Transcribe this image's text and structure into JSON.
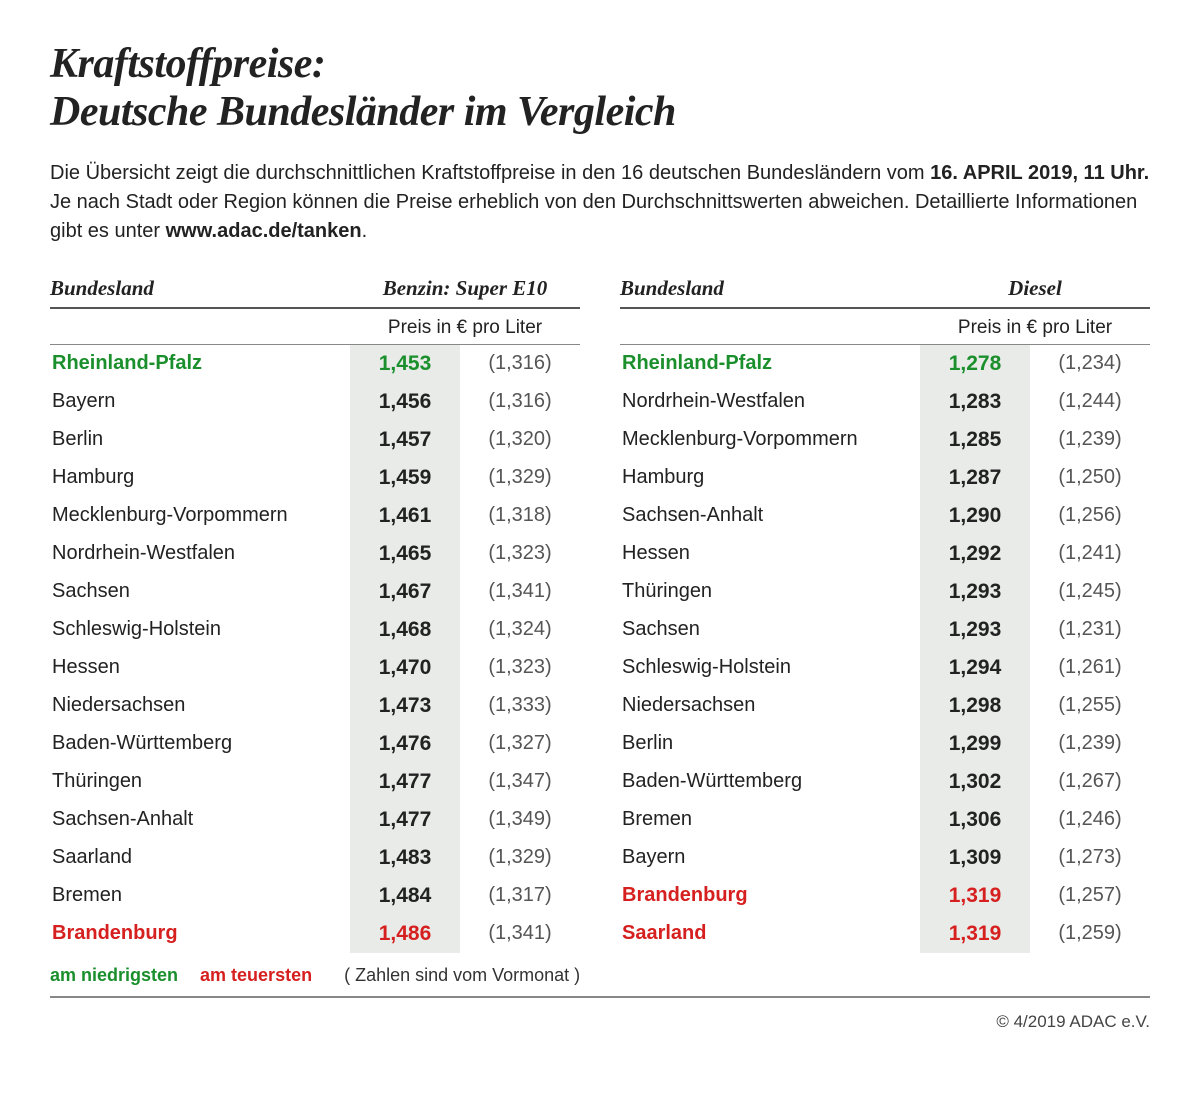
{
  "title_line1": "Kraftstoffpreise:",
  "title_line2": "Deutsche Bundesländer im Vergleich",
  "subtitle_pre": "Die Übersicht zeigt die durchschnittlichen Kraftstoffpreise in den 16 deutschen Bundesländern vom ",
  "subtitle_date": "16. APRIL 2019, 11 Uhr.",
  "subtitle_mid": " Je nach Stadt oder Region können die Preise erheblich von den Durchschnittswerten abweichen. Detaillierte Informationen gibt es unter ",
  "subtitle_link": "www.adac.de/tanken",
  "subtitle_end": ".",
  "col_region": "Bundesland",
  "unit_label": "Preis in € pro Liter",
  "tables": [
    {
      "fuel_label": "Benzin: Super E10",
      "rows": [
        {
          "name": "Rheinland-Pfalz",
          "price": "1,453",
          "prev": "(1,316)",
          "flag": "low"
        },
        {
          "name": "Bayern",
          "price": "1,456",
          "prev": "(1,316)",
          "flag": ""
        },
        {
          "name": "Berlin",
          "price": "1,457",
          "prev": "(1,320)",
          "flag": ""
        },
        {
          "name": "Hamburg",
          "price": "1,459",
          "prev": "(1,329)",
          "flag": ""
        },
        {
          "name": "Mecklenburg-Vorpommern",
          "price": "1,461",
          "prev": "(1,318)",
          "flag": ""
        },
        {
          "name": "Nordrhein-Westfalen",
          "price": "1,465",
          "prev": "(1,323)",
          "flag": ""
        },
        {
          "name": "Sachsen",
          "price": "1,467",
          "prev": "(1,341)",
          "flag": ""
        },
        {
          "name": "Schleswig-Holstein",
          "price": "1,468",
          "prev": "(1,324)",
          "flag": ""
        },
        {
          "name": "Hessen",
          "price": "1,470",
          "prev": "(1,323)",
          "flag": ""
        },
        {
          "name": "Niedersachsen",
          "price": "1,473",
          "prev": "(1,333)",
          "flag": ""
        },
        {
          "name": "Baden-Württemberg",
          "price": "1,476",
          "prev": "(1,327)",
          "flag": ""
        },
        {
          "name": "Thüringen",
          "price": "1,477",
          "prev": "(1,347)",
          "flag": ""
        },
        {
          "name": "Sachsen-Anhalt",
          "price": "1,477",
          "prev": "(1,349)",
          "flag": ""
        },
        {
          "name": "Saarland",
          "price": "1,483",
          "prev": "(1,329)",
          "flag": ""
        },
        {
          "name": "Bremen",
          "price": "1,484",
          "prev": "(1,317)",
          "flag": ""
        },
        {
          "name": "Brandenburg",
          "price": "1,486",
          "prev": "(1,341)",
          "flag": "high"
        }
      ]
    },
    {
      "fuel_label": "Diesel",
      "rows": [
        {
          "name": "Rheinland-Pfalz",
          "price": "1,278",
          "prev": "(1,234)",
          "flag": "low"
        },
        {
          "name": "Nordrhein-Westfalen",
          "price": "1,283",
          "prev": "(1,244)",
          "flag": ""
        },
        {
          "name": "Mecklenburg-Vorpommern",
          "price": "1,285",
          "prev": "(1,239)",
          "flag": ""
        },
        {
          "name": "Hamburg",
          "price": "1,287",
          "prev": "(1,250)",
          "flag": ""
        },
        {
          "name": "Sachsen-Anhalt",
          "price": "1,290",
          "prev": "(1,256)",
          "flag": ""
        },
        {
          "name": "Hessen",
          "price": "1,292",
          "prev": "(1,241)",
          "flag": ""
        },
        {
          "name": "Thüringen",
          "price": "1,293",
          "prev": "(1,245)",
          "flag": ""
        },
        {
          "name": "Sachsen",
          "price": "1,293",
          "prev": "(1,231)",
          "flag": ""
        },
        {
          "name": "Schleswig-Holstein",
          "price": "1,294",
          "prev": "(1,261)",
          "flag": ""
        },
        {
          "name": "Niedersachsen",
          "price": "1,298",
          "prev": "(1,255)",
          "flag": ""
        },
        {
          "name": "Berlin",
          "price": "1,299",
          "prev": "(1,239)",
          "flag": ""
        },
        {
          "name": "Baden-Württemberg",
          "price": "1,302",
          "prev": "(1,267)",
          "flag": ""
        },
        {
          "name": "Bremen",
          "price": "1,306",
          "prev": "(1,246)",
          "flag": ""
        },
        {
          "name": "Bayern",
          "price": "1,309",
          "prev": "(1,273)",
          "flag": ""
        },
        {
          "name": "Brandenburg",
          "price": "1,319",
          "prev": "(1,257)",
          "flag": "high"
        },
        {
          "name": "Saarland",
          "price": "1,319",
          "prev": "(1,259)",
          "flag": "high"
        }
      ]
    }
  ],
  "legend_low": "am niedrigsten",
  "legend_high": "am teuersten",
  "legend_note": "( Zahlen sind vom Vormonat )",
  "copyright": "© 4/2019 ADAC e.V.",
  "colors": {
    "low": "#1a8f2c",
    "high": "#d6201f",
    "price_bg": "#e8ebe8",
    "text": "#222222",
    "muted": "#555555"
  }
}
